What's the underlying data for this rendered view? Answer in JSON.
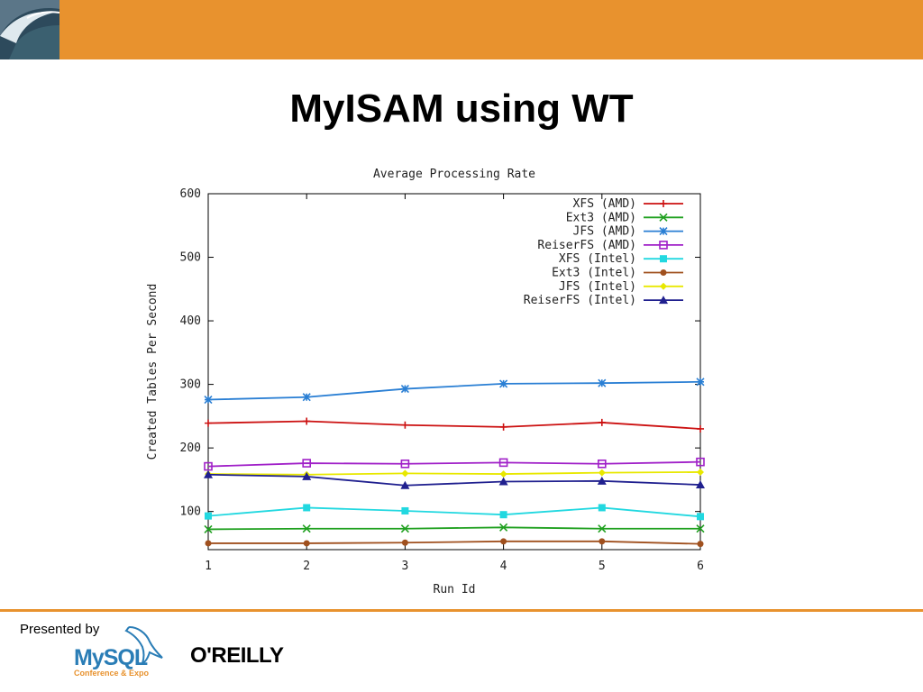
{
  "header": {
    "bar_color": "#e8922e",
    "logo_icon": "wave-icon"
  },
  "slide": {
    "title": "MyISAM using WT"
  },
  "footer": {
    "presented_by": "Presented by",
    "mysql_logo_text": "MySQL",
    "mysql_sub_text": "Conference & Expo",
    "oreilly_logo_text": "O'REILLY",
    "line_color": "#e8922e"
  },
  "chart_data": {
    "type": "line",
    "title": "Average Processing Rate",
    "xlabel": "Run Id",
    "ylabel": "Created Tables Per Second",
    "x": [
      1,
      2,
      3,
      4,
      5,
      6
    ],
    "xlim": [
      1,
      6
    ],
    "ylim": [
      40,
      600
    ],
    "x_ticks": [
      "1",
      "2",
      "3",
      "4",
      "5",
      "6"
    ],
    "y_ticks": [
      100,
      200,
      300,
      400,
      500,
      600
    ],
    "grid": false,
    "legend_position": "top-right",
    "series": [
      {
        "name": "XFS (AMD)",
        "color": "#cc1111",
        "marker": "plus",
        "values": [
          239,
          242,
          236,
          233,
          240,
          230
        ]
      },
      {
        "name": "Ext3 (AMD)",
        "color": "#1fa01f",
        "marker": "x",
        "values": [
          72,
          73,
          73,
          75,
          73,
          73
        ]
      },
      {
        "name": "JFS (AMD)",
        "color": "#2a7fd4",
        "marker": "star",
        "values": [
          276,
          280,
          293,
          301,
          302,
          304
        ]
      },
      {
        "name": "ReiserFS (AMD)",
        "color": "#a020c8",
        "marker": "square-open",
        "values": [
          171,
          176,
          175,
          177,
          175,
          178
        ]
      },
      {
        "name": "XFS (Intel)",
        "color": "#22d8e0",
        "marker": "square",
        "values": [
          93,
          106,
          101,
          95,
          106,
          92
        ]
      },
      {
        "name": "Ext3 (Intel)",
        "color": "#a0501e",
        "marker": "circle",
        "values": [
          50,
          50,
          51,
          53,
          53,
          49
        ]
      },
      {
        "name": "JFS (Intel)",
        "color": "#e8e800",
        "marker": "diamond",
        "values": [
          159,
          158,
          160,
          159,
          161,
          162
        ]
      },
      {
        "name": "ReiserFS (Intel)",
        "color": "#20208f",
        "marker": "triangle",
        "values": [
          158,
          155,
          141,
          147,
          148,
          142
        ]
      }
    ]
  }
}
